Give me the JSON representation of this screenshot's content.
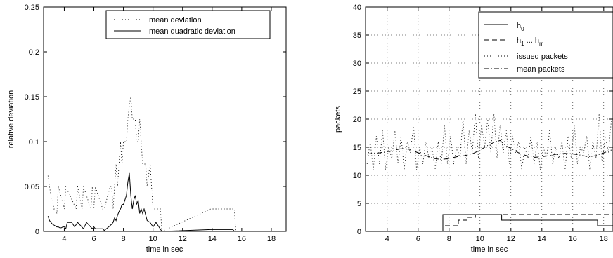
{
  "chart_data": [
    {
      "type": "line",
      "title": "",
      "xlabel": "time in sec",
      "ylabel": "relative deviation",
      "xlim": [
        2.6,
        19.0
      ],
      "ylim": [
        0,
        0.25
      ],
      "xticks": [
        4,
        6,
        8,
        10,
        12,
        14,
        16,
        18
      ],
      "yticks": [
        0,
        0.05,
        0.1,
        0.15,
        0.2,
        0.25
      ],
      "xtick_labels": [
        "4",
        "6",
        "8",
        "10",
        "12",
        "14",
        "16",
        "18"
      ],
      "ytick_labels": [
        "0",
        "0.05",
        "0.1",
        "0.15",
        "0.2",
        "0.25"
      ],
      "grid": false,
      "legend": "top-right",
      "series": [
        {
          "name": "mean deviation",
          "style": "dotted",
          "x": [
            2.9,
            3.0,
            3.1,
            3.2,
            3.3,
            3.4,
            3.5,
            3.6,
            4.0,
            4.1,
            4.8,
            4.9,
            5.2,
            5.3,
            5.8,
            5.9,
            6.0,
            6.1,
            6.6,
            6.7,
            7.1,
            7.2,
            7.3,
            7.4,
            7.5,
            7.6,
            7.7,
            7.8,
            7.9,
            8.0,
            8.1,
            8.2,
            8.3,
            8.4,
            8.5,
            8.6,
            8.7,
            8.8,
            8.9,
            9.0,
            9.1,
            9.2,
            9.3,
            9.5,
            9.6,
            9.8,
            9.9,
            10.0,
            10.5,
            10.6,
            13.9,
            14.0,
            15.5,
            15.6
          ],
          "y": [
            0.062,
            0.05,
            0.04,
            0.035,
            0.025,
            0.025,
            0.02,
            0.05,
            0.025,
            0.05,
            0.025,
            0.05,
            0.025,
            0.05,
            0.025,
            0.05,
            0.025,
            0.05,
            0.025,
            0.025,
            0.05,
            0.05,
            0.025,
            0.05,
            0.075,
            0.05,
            0.075,
            0.1,
            0.075,
            0.1,
            0.1,
            0.1,
            0.125,
            0.14,
            0.15,
            0.125,
            0.125,
            0.125,
            0.1,
            0.1,
            0.125,
            0.1,
            0.075,
            0.075,
            0.05,
            0.075,
            0.05,
            0.025,
            0.025,
            0,
            0.025,
            0.025,
            0.025,
            0
          ]
        },
        {
          "name": "mean quadratic deviation",
          "style": "solid",
          "x": [
            2.9,
            3.0,
            3.1,
            3.2,
            3.3,
            3.4,
            3.5,
            3.6,
            3.7,
            3.8,
            3.9,
            4.0,
            4.1,
            4.2,
            4.5,
            4.7,
            4.9,
            5.3,
            5.5,
            5.9,
            6.0,
            6.1,
            6.6,
            6.7,
            7.0,
            7.2,
            7.3,
            7.4,
            7.5,
            7.6,
            7.7,
            7.8,
            7.9,
            8.0,
            8.1,
            8.2,
            8.3,
            8.4,
            8.5,
            8.6,
            8.7,
            8.8,
            8.9,
            9.0,
            9.1,
            9.2,
            9.3,
            9.4,
            9.6,
            9.8,
            10.0,
            10.2,
            10.4,
            10.6,
            13.9,
            14.0,
            15.4,
            15.5
          ],
          "y": [
            0.017,
            0.012,
            0.01,
            0.008,
            0.007,
            0.006,
            0.005,
            0.005,
            0.004,
            0.004,
            0.005,
            0.005,
            0.003,
            0.01,
            0.01,
            0.005,
            0.01,
            0.003,
            0.01,
            0.003,
            0.005,
            0.003,
            0.003,
            0.001,
            0.005,
            0.008,
            0.01,
            0.015,
            0.012,
            0.018,
            0.022,
            0.025,
            0.03,
            0.03,
            0.035,
            0.04,
            0.055,
            0.065,
            0.04,
            0.025,
            0.035,
            0.04,
            0.03,
            0.035,
            0.02,
            0.025,
            0.02,
            0.025,
            0.012,
            0.01,
            0.005,
            0.01,
            0.005,
            0,
            0.002,
            0.002,
            0.002,
            0
          ]
        }
      ]
    },
    {
      "type": "line",
      "title": "",
      "xlabel": "time in sec",
      "ylabel": "packets",
      "xlim": [
        2.6,
        18.6
      ],
      "ylim": [
        0,
        40
      ],
      "xticks": [
        4,
        6,
        8,
        10,
        12,
        14,
        16,
        18
      ],
      "yticks": [
        0,
        5,
        10,
        15,
        20,
        25,
        30,
        35,
        40
      ],
      "xtick_labels": [
        "4",
        "6",
        "8",
        "10",
        "12",
        "14",
        "16",
        "18"
      ],
      "ytick_labels": [
        "0",
        "5",
        "10",
        "15",
        "20",
        "25",
        "30",
        "35",
        "40"
      ],
      "grid": true,
      "legend": "top-right",
      "series": [
        {
          "name": "h0",
          "legend_label_parts": [
            "h",
            "0"
          ],
          "style": "solid",
          "x": [
            2.6,
            7.6,
            7.6,
            11.4,
            11.4,
            17.6,
            17.6,
            18.6
          ],
          "y": [
            0,
            0,
            3,
            3,
            2,
            2,
            1,
            1
          ]
        },
        {
          "name": "h1 ... hrr",
          "legend_label_parts": [
            "h",
            "1",
            " ... h",
            "rr"
          ],
          "style": "dashed",
          "x": [
            2.6,
            7.6,
            7.6,
            8.6,
            8.6,
            9.2,
            9.2,
            9.7,
            9.7,
            18.6
          ],
          "y": [
            0,
            0,
            1,
            1,
            2,
            2,
            2.5,
            2.5,
            3,
            3
          ]
        },
        {
          "name": "issued packets",
          "style": "dotted",
          "x": [
            2.7,
            2.9,
            3.1,
            3.3,
            3.5,
            3.7,
            3.9,
            4.1,
            4.3,
            4.5,
            4.7,
            4.9,
            5.1,
            5.3,
            5.5,
            5.7,
            5.9,
            6.1,
            6.3,
            6.5,
            6.7,
            6.9,
            7.1,
            7.3,
            7.5,
            7.7,
            7.9,
            8.1,
            8.3,
            8.5,
            8.7,
            8.9,
            9.1,
            9.3,
            9.5,
            9.7,
            9.9,
            10.1,
            10.3,
            10.5,
            10.7,
            10.9,
            11.1,
            11.3,
            11.5,
            11.7,
            11.9,
            12.1,
            12.3,
            12.5,
            12.7,
            12.9,
            13.1,
            13.3,
            13.5,
            13.7,
            13.9,
            14.1,
            14.3,
            14.5,
            14.7,
            14.9,
            15.1,
            15.3,
            15.5,
            15.7,
            15.9,
            16.1,
            16.3,
            16.5,
            16.7,
            16.9,
            17.1,
            17.3,
            17.5,
            17.7,
            17.9,
            18.1,
            18.3,
            18.5
          ],
          "y": [
            12,
            16,
            11,
            17,
            12,
            18,
            11,
            15,
            13,
            18,
            12,
            17,
            11,
            16,
            14,
            19,
            11,
            15,
            12,
            16,
            13,
            15,
            11,
            16,
            12,
            19,
            12,
            17,
            12,
            15,
            13,
            20,
            12,
            18,
            14,
            21,
            13,
            19,
            15,
            20,
            14,
            21,
            13,
            19,
            14,
            18,
            12,
            17,
            14,
            16,
            11,
            15,
            13,
            17,
            12,
            16,
            11,
            15,
            13,
            18,
            12,
            15,
            13,
            16,
            11,
            17,
            13,
            19,
            12,
            15,
            14,
            17,
            11,
            16,
            13,
            21,
            12,
            17,
            14,
            20
          ]
        },
        {
          "name": "mean packets",
          "style": "dashdot",
          "x": [
            2.7,
            3.5,
            4.0,
            4.5,
            5.0,
            5.5,
            6.0,
            6.5,
            7.0,
            7.5,
            8.0,
            8.5,
            9.0,
            9.5,
            10.0,
            10.5,
            11.0,
            11.3,
            11.7,
            12.0,
            12.5,
            13.0,
            13.5,
            14.0,
            14.5,
            15.0,
            15.5,
            16.0,
            16.5,
            17.0,
            17.5,
            18.0,
            18.5
          ],
          "y": [
            13.8,
            14.0,
            14.2,
            14.5,
            14.8,
            14.6,
            14.0,
            13.5,
            13.0,
            12.8,
            13.0,
            13.3,
            13.5,
            13.8,
            14.5,
            15.3,
            16.0,
            16.2,
            15.2,
            14.8,
            14.0,
            13.5,
            13.2,
            13.3,
            13.5,
            13.8,
            13.9,
            13.8,
            13.6,
            13.3,
            13.5,
            14.0,
            14.5
          ]
        }
      ]
    }
  ]
}
